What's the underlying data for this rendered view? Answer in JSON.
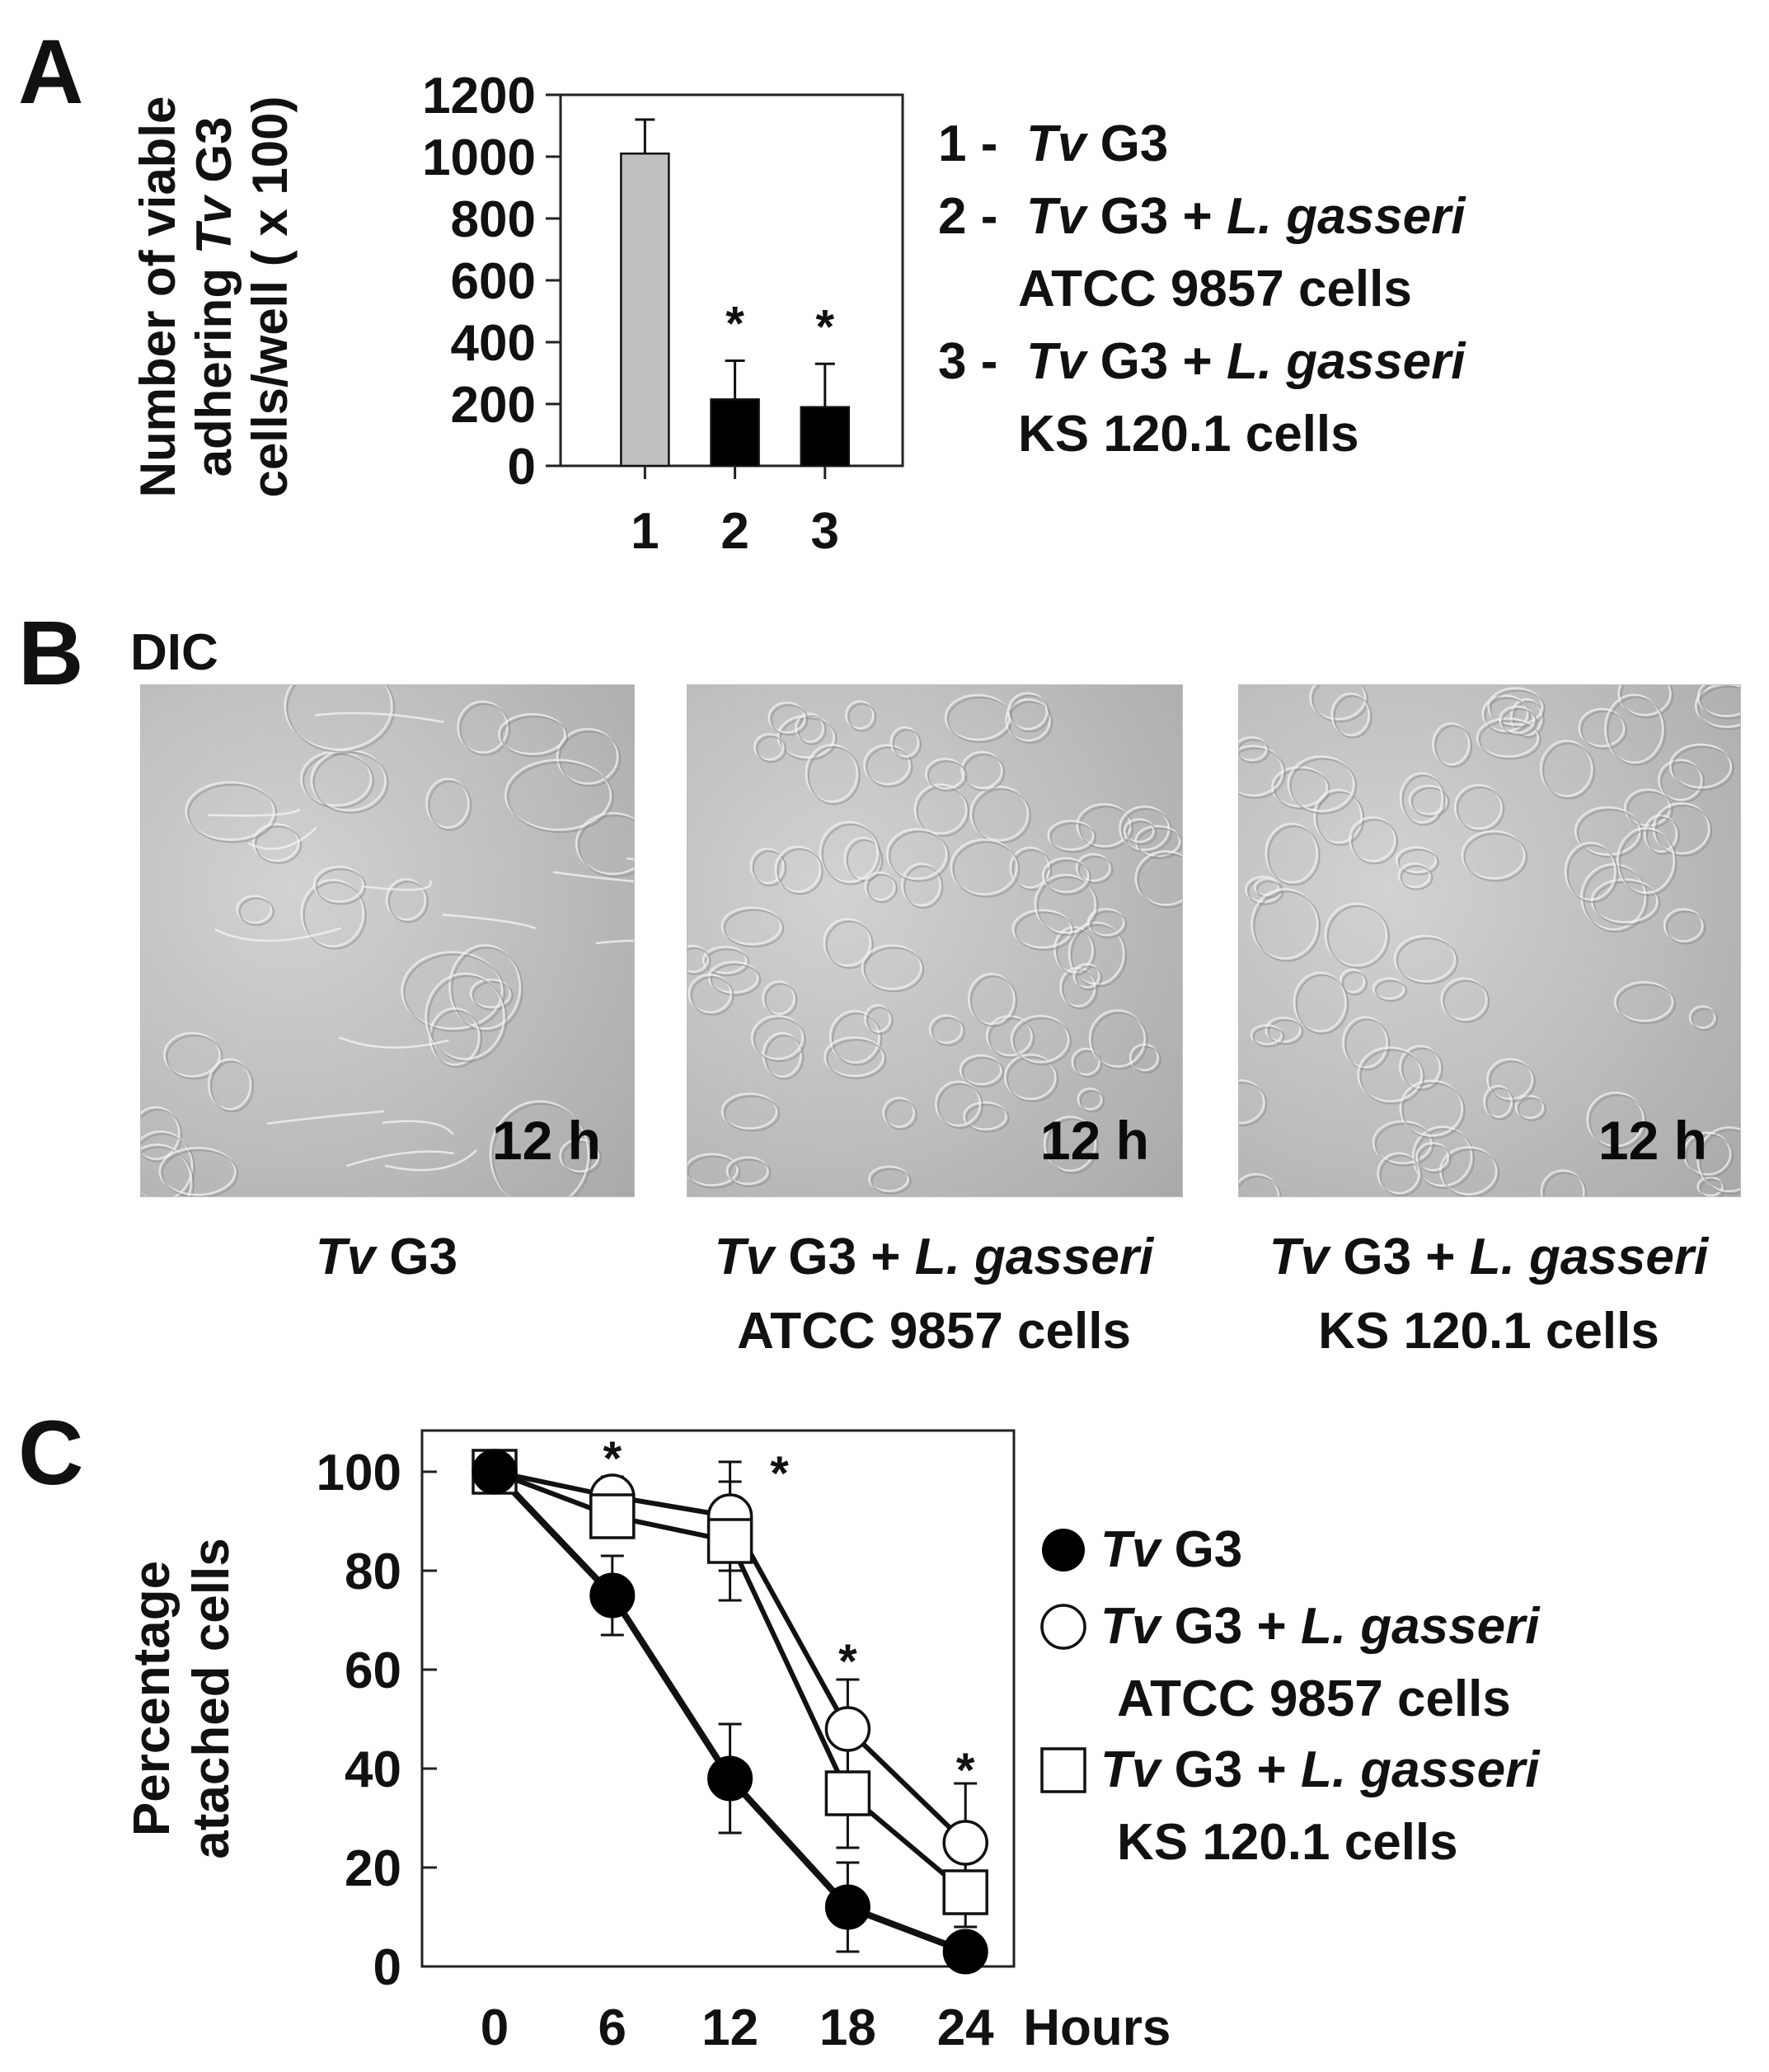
{
  "panel_letters": {
    "a": "A",
    "b": "B",
    "c": "C"
  },
  "chart_data": [
    {
      "panel": "A",
      "type": "bar",
      "ylabel": "Number of viable adhering Tv G3 cells/well ( x 100)",
      "ylabel_lines": [
        "Number of viable",
        "adhering Tv G3",
        "cells/well ( x 100)"
      ],
      "ylim": [
        0,
        1200
      ],
      "yticks": [
        0,
        200,
        400,
        600,
        800,
        1000,
        1200
      ],
      "categories": [
        "1",
        "2",
        "3"
      ],
      "values": [
        1010,
        215,
        190
      ],
      "errors": [
        110,
        125,
        140
      ],
      "bar_colors": [
        "#c0c0c0",
        "#000000",
        "#000000"
      ],
      "significance": [
        "",
        "*",
        "*"
      ],
      "legend": [
        {
          "num": "1 -",
          "lines": [
            [
              "Tv",
              " G3"
            ]
          ]
        },
        {
          "num": "2 -",
          "lines": [
            [
              "Tv",
              " G3 + ",
              "L. gasseri"
            ],
            [
              "ATCC 9857 cells"
            ]
          ]
        },
        {
          "num": "3 -",
          "lines": [
            [
              "Tv",
              " G3 + ",
              "L. gasseri"
            ],
            [
              "KS 120.1 cells"
            ]
          ]
        }
      ]
    },
    {
      "panel": "C",
      "type": "line",
      "ylabel": "Percentage attached cells",
      "ylabel_lines": [
        "Percentage",
        "atached cells"
      ],
      "xlabel": "Hours",
      "ylim": [
        0,
        100
      ],
      "yticks": [
        0,
        20,
        40,
        60,
        80,
        100
      ],
      "xticks": [
        0,
        6,
        12,
        18,
        24
      ],
      "series": [
        {
          "name": "Tv G3",
          "marker": "filled-circle",
          "x": [
            0,
            6,
            12,
            18,
            24
          ],
          "y": [
            100,
            75,
            38,
            12,
            3
          ],
          "err": [
            0,
            8,
            11,
            9,
            2
          ]
        },
        {
          "name": "Tv G3 + L. gasseri ATCC 9857 cells",
          "marker": "open-circle",
          "x": [
            0,
            6,
            12,
            18,
            24
          ],
          "y": [
            100,
            95,
            91,
            48,
            25
          ],
          "err": [
            0,
            4,
            11,
            10,
            12
          ]
        },
        {
          "name": "Tv G3 + L. gasseri KS 120.1 cells",
          "marker": "open-square",
          "x": [
            0,
            6,
            12,
            18,
            24
          ],
          "y": [
            100,
            91,
            86,
            35,
            15
          ],
          "err": [
            0,
            4,
            12,
            11,
            7
          ]
        }
      ],
      "significance": [
        {
          "x": 6,
          "y": 104,
          "label": "*"
        },
        {
          "x": 12,
          "y": 101,
          "label": "*"
        },
        {
          "x": 18,
          "y": 63,
          "label": "*"
        },
        {
          "x": 24,
          "y": 41,
          "label": "*"
        }
      ],
      "legend": [
        {
          "marker": "filled-circle",
          "lines": [
            [
              "Tv",
              " G3"
            ]
          ]
        },
        {
          "marker": "open-circle",
          "lines": [
            [
              "Tv",
              " G3 + ",
              "L. gasseri"
            ],
            [
              "ATCC 9857 cells"
            ]
          ]
        },
        {
          "marker": "open-square",
          "lines": [
            [
              "Tv",
              " G3 + ",
              "L. gasseri"
            ],
            [
              "KS 120.1 cells"
            ]
          ]
        }
      ]
    }
  ],
  "panel_b": {
    "label": "DIC",
    "images": [
      {
        "time": "12 h",
        "caption_lines": [
          [
            "Tv",
            " G3"
          ]
        ]
      },
      {
        "time": "12 h",
        "caption_lines": [
          [
            "Tv",
            " G3 + ",
            "L. gasseri"
          ],
          [
            "ATCC 9857 cells"
          ]
        ]
      },
      {
        "time": "12 h",
        "caption_lines": [
          [
            "Tv",
            " G3 + ",
            "L. gasseri"
          ],
          [
            "KS 120.1 cells"
          ]
        ]
      }
    ]
  },
  "colors": {
    "ink": "#111111",
    "bar_light": "#c0c0c0",
    "bar_dark": "#000000",
    "micro_base": "#bdbdbd"
  }
}
